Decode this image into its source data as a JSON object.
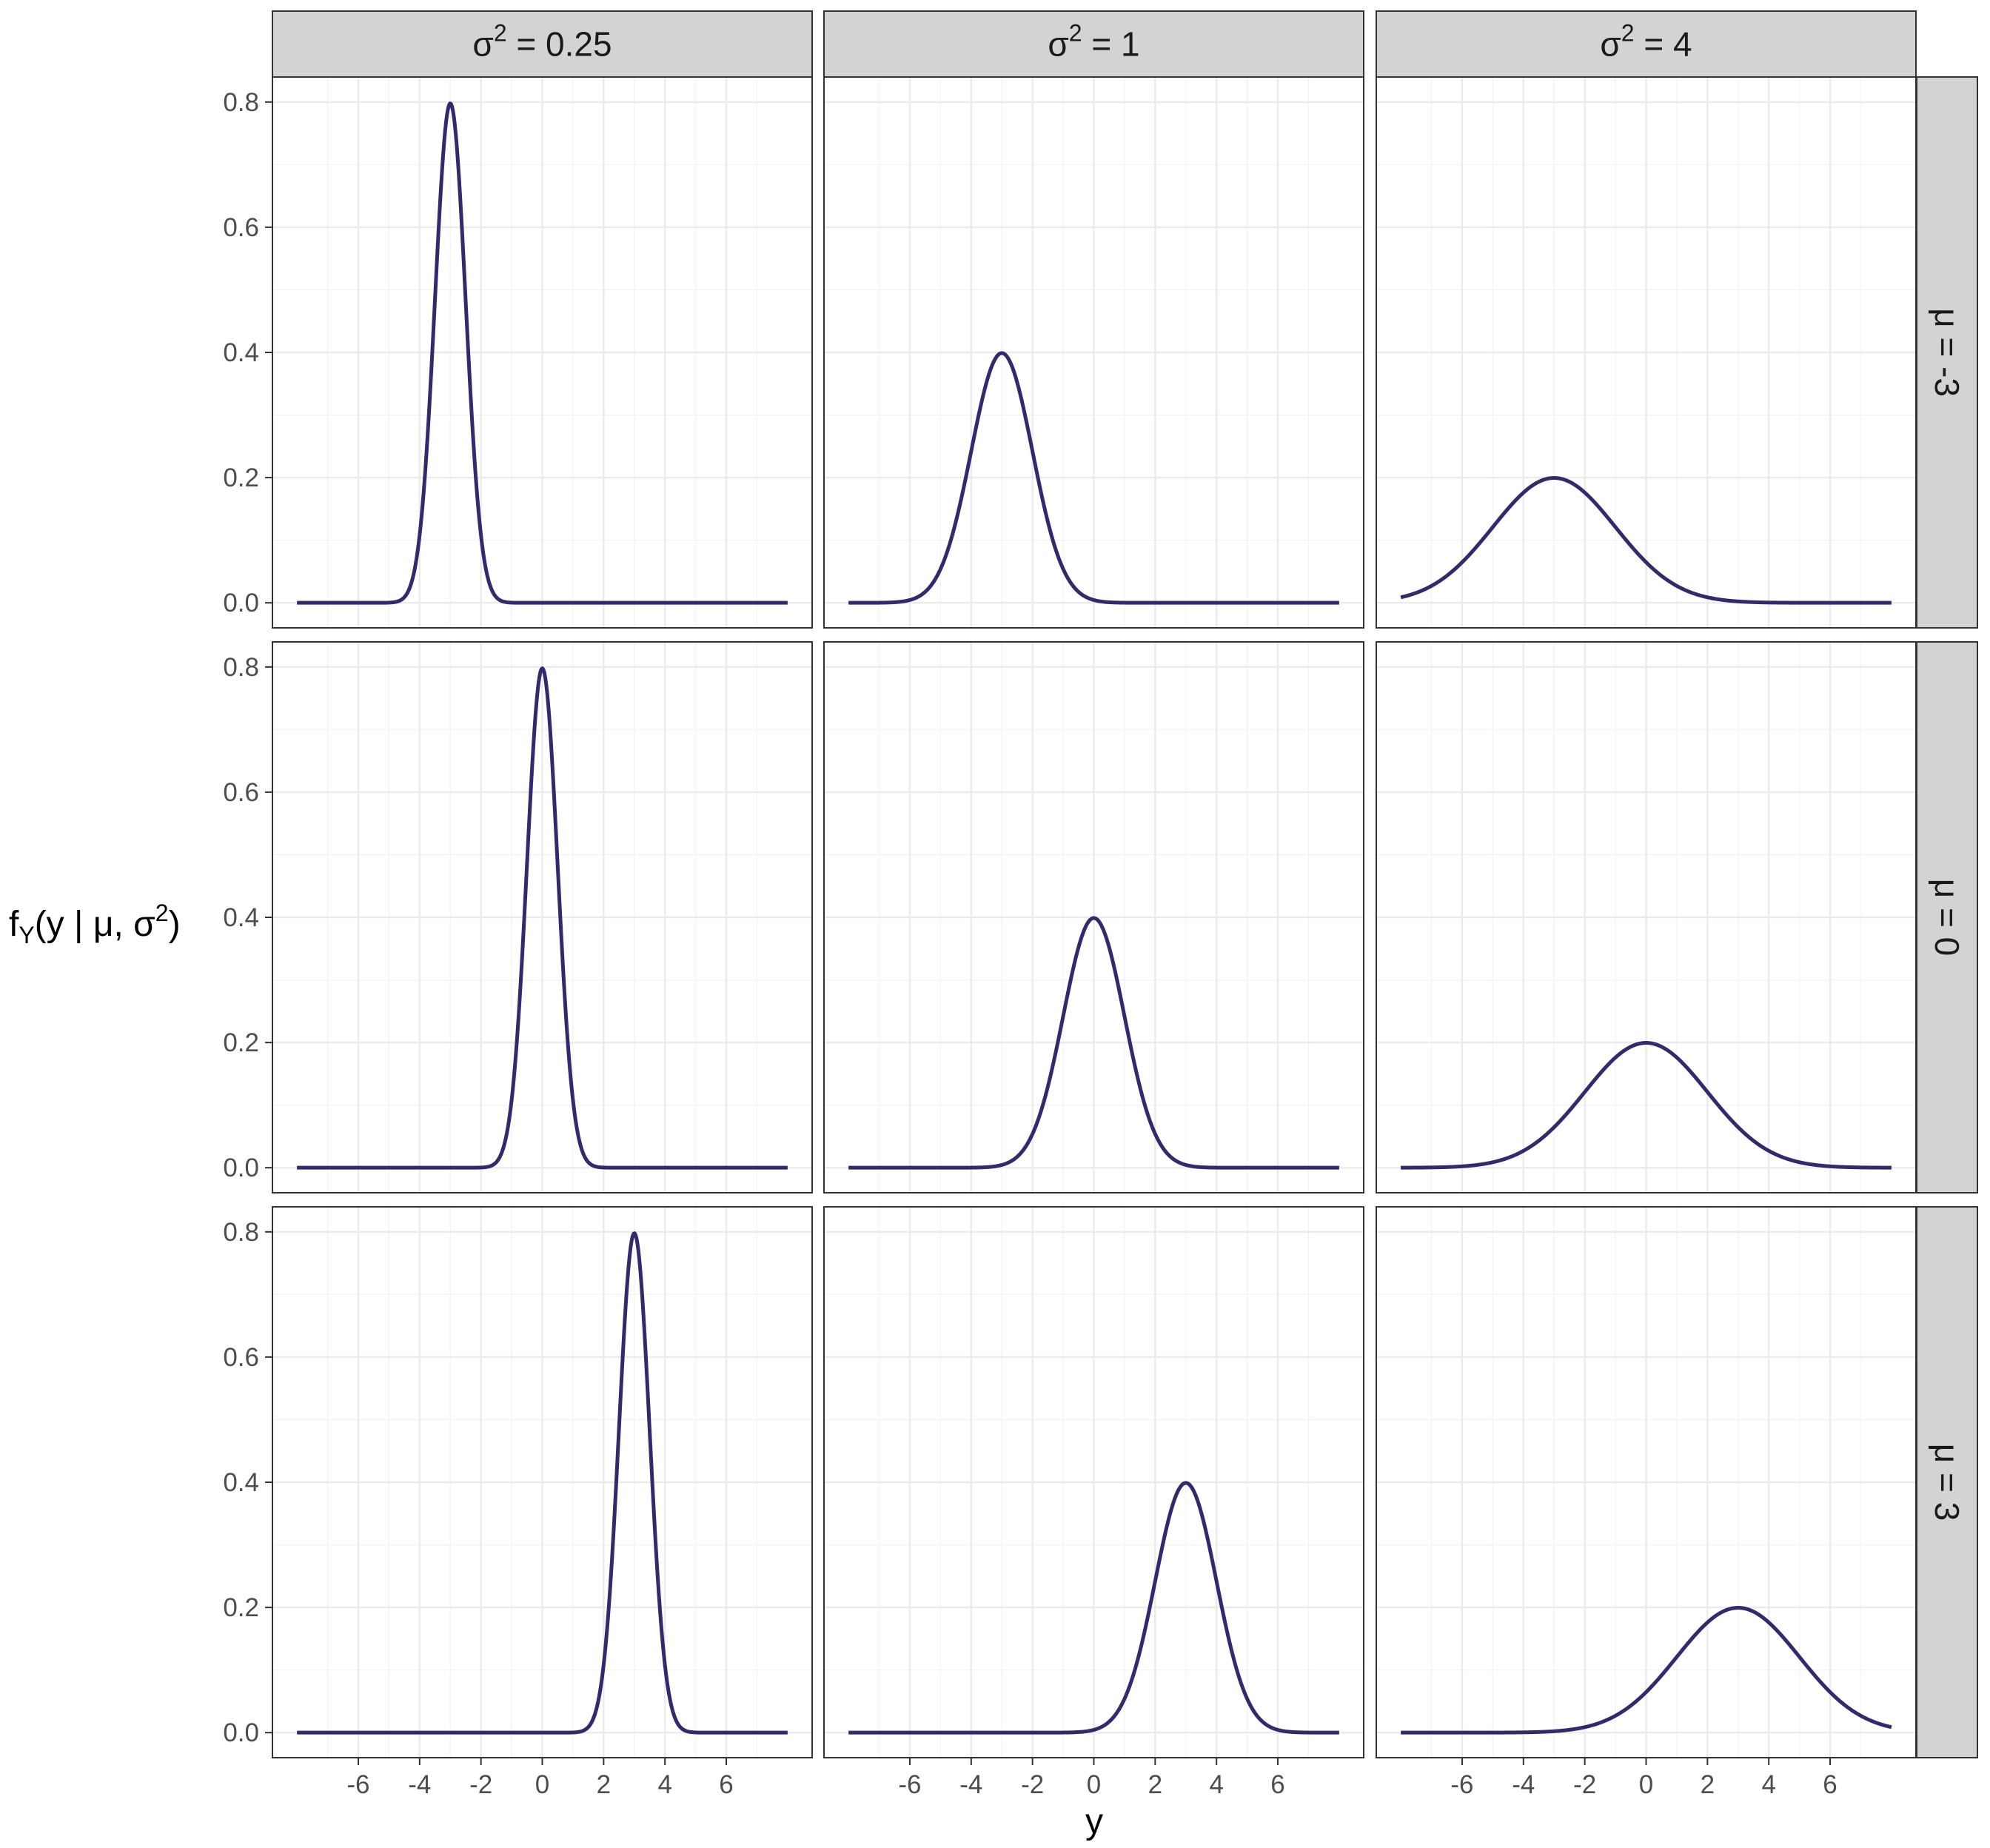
{
  "chart_data": {
    "type": "line",
    "layout": "facet_grid",
    "xlabel": "y",
    "ylabel": "f_Y(y | μ, σ²)",
    "ylabel_parts": {
      "f": "f",
      "sub": "Y",
      "mid": "(y | μ, σ",
      "sup": "2",
      "close": ")"
    },
    "column_strips": [
      {
        "sym": "σ",
        "sup": "2",
        "text": " = 0.25"
      },
      {
        "sym": "σ",
        "sup": "2",
        "text": " = 1"
      },
      {
        "sym": "σ",
        "sup": "2",
        "text": " = 4"
      }
    ],
    "row_strips": [
      "μ = -3",
      "μ = 0",
      "μ = 3"
    ],
    "x_ticks": [
      -6,
      -4,
      -2,
      0,
      2,
      4,
      6
    ],
    "x_tick_labels": [
      "-6",
      "-4",
      "-2",
      "0",
      "2",
      "4",
      "6"
    ],
    "y_ticks": [
      0,
      0.2,
      0.4,
      0.6,
      0.8
    ],
    "y_tick_labels": [
      "0.0",
      "0.2",
      "0.4",
      "0.6",
      "0.8"
    ],
    "xlim": [
      -8.8,
      8.8
    ],
    "ylim": [
      -0.04,
      0.84
    ],
    "curve_x_range": [
      -8,
      8
    ],
    "grid": true,
    "line_color": "#332a6e",
    "panels": [
      {
        "row": 0,
        "col": 0,
        "mu": -3,
        "sigma2": 0.25
      },
      {
        "row": 0,
        "col": 1,
        "mu": -3,
        "sigma2": 1
      },
      {
        "row": 0,
        "col": 2,
        "mu": -3,
        "sigma2": 4
      },
      {
        "row": 1,
        "col": 0,
        "mu": 0,
        "sigma2": 0.25
      },
      {
        "row": 1,
        "col": 1,
        "mu": 0,
        "sigma2": 1
      },
      {
        "row": 1,
        "col": 2,
        "mu": 0,
        "sigma2": 4
      },
      {
        "row": 2,
        "col": 0,
        "mu": 3,
        "sigma2": 0.25
      },
      {
        "row": 2,
        "col": 1,
        "mu": 3,
        "sigma2": 1
      },
      {
        "row": 2,
        "col": 2,
        "mu": 3,
        "sigma2": 4
      }
    ]
  }
}
